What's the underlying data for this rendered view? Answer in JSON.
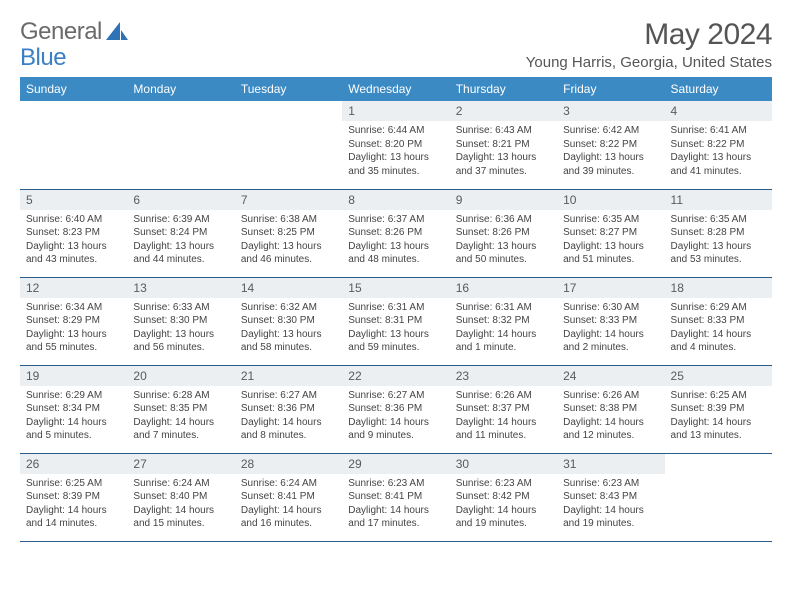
{
  "brand": {
    "word1": "General",
    "word2": "Blue"
  },
  "title": "May 2024",
  "location": "Young Harris, Georgia, United States",
  "colors": {
    "header_bg": "#3b8ac4",
    "header_text": "#ffffff",
    "daynum_bg": "#eceff1",
    "border": "#2a5d8a",
    "body_text": "#444444",
    "title_text": "#555555"
  },
  "weekdays": [
    "Sunday",
    "Monday",
    "Tuesday",
    "Wednesday",
    "Thursday",
    "Friday",
    "Saturday"
  ],
  "first_weekday_index": 3,
  "days": [
    {
      "n": 1,
      "sr": "6:44 AM",
      "ss": "8:20 PM",
      "dl": "13 hours and 35 minutes."
    },
    {
      "n": 2,
      "sr": "6:43 AM",
      "ss": "8:21 PM",
      "dl": "13 hours and 37 minutes."
    },
    {
      "n": 3,
      "sr": "6:42 AM",
      "ss": "8:22 PM",
      "dl": "13 hours and 39 minutes."
    },
    {
      "n": 4,
      "sr": "6:41 AM",
      "ss": "8:22 PM",
      "dl": "13 hours and 41 minutes."
    },
    {
      "n": 5,
      "sr": "6:40 AM",
      "ss": "8:23 PM",
      "dl": "13 hours and 43 minutes."
    },
    {
      "n": 6,
      "sr": "6:39 AM",
      "ss": "8:24 PM",
      "dl": "13 hours and 44 minutes."
    },
    {
      "n": 7,
      "sr": "6:38 AM",
      "ss": "8:25 PM",
      "dl": "13 hours and 46 minutes."
    },
    {
      "n": 8,
      "sr": "6:37 AM",
      "ss": "8:26 PM",
      "dl": "13 hours and 48 minutes."
    },
    {
      "n": 9,
      "sr": "6:36 AM",
      "ss": "8:26 PM",
      "dl": "13 hours and 50 minutes."
    },
    {
      "n": 10,
      "sr": "6:35 AM",
      "ss": "8:27 PM",
      "dl": "13 hours and 51 minutes."
    },
    {
      "n": 11,
      "sr": "6:35 AM",
      "ss": "8:28 PM",
      "dl": "13 hours and 53 minutes."
    },
    {
      "n": 12,
      "sr": "6:34 AM",
      "ss": "8:29 PM",
      "dl": "13 hours and 55 minutes."
    },
    {
      "n": 13,
      "sr": "6:33 AM",
      "ss": "8:30 PM",
      "dl": "13 hours and 56 minutes."
    },
    {
      "n": 14,
      "sr": "6:32 AM",
      "ss": "8:30 PM",
      "dl": "13 hours and 58 minutes."
    },
    {
      "n": 15,
      "sr": "6:31 AM",
      "ss": "8:31 PM",
      "dl": "13 hours and 59 minutes."
    },
    {
      "n": 16,
      "sr": "6:31 AM",
      "ss": "8:32 PM",
      "dl": "14 hours and 1 minute."
    },
    {
      "n": 17,
      "sr": "6:30 AM",
      "ss": "8:33 PM",
      "dl": "14 hours and 2 minutes."
    },
    {
      "n": 18,
      "sr": "6:29 AM",
      "ss": "8:33 PM",
      "dl": "14 hours and 4 minutes."
    },
    {
      "n": 19,
      "sr": "6:29 AM",
      "ss": "8:34 PM",
      "dl": "14 hours and 5 minutes."
    },
    {
      "n": 20,
      "sr": "6:28 AM",
      "ss": "8:35 PM",
      "dl": "14 hours and 7 minutes."
    },
    {
      "n": 21,
      "sr": "6:27 AM",
      "ss": "8:36 PM",
      "dl": "14 hours and 8 minutes."
    },
    {
      "n": 22,
      "sr": "6:27 AM",
      "ss": "8:36 PM",
      "dl": "14 hours and 9 minutes."
    },
    {
      "n": 23,
      "sr": "6:26 AM",
      "ss": "8:37 PM",
      "dl": "14 hours and 11 minutes."
    },
    {
      "n": 24,
      "sr": "6:26 AM",
      "ss": "8:38 PM",
      "dl": "14 hours and 12 minutes."
    },
    {
      "n": 25,
      "sr": "6:25 AM",
      "ss": "8:39 PM",
      "dl": "14 hours and 13 minutes."
    },
    {
      "n": 26,
      "sr": "6:25 AM",
      "ss": "8:39 PM",
      "dl": "14 hours and 14 minutes."
    },
    {
      "n": 27,
      "sr": "6:24 AM",
      "ss": "8:40 PM",
      "dl": "14 hours and 15 minutes."
    },
    {
      "n": 28,
      "sr": "6:24 AM",
      "ss": "8:41 PM",
      "dl": "14 hours and 16 minutes."
    },
    {
      "n": 29,
      "sr": "6:23 AM",
      "ss": "8:41 PM",
      "dl": "14 hours and 17 minutes."
    },
    {
      "n": 30,
      "sr": "6:23 AM",
      "ss": "8:42 PM",
      "dl": "14 hours and 19 minutes."
    },
    {
      "n": 31,
      "sr": "6:23 AM",
      "ss": "8:43 PM",
      "dl": "14 hours and 19 minutes."
    }
  ],
  "labels": {
    "sunrise": "Sunrise:",
    "sunset": "Sunset:",
    "daylight": "Daylight:"
  }
}
